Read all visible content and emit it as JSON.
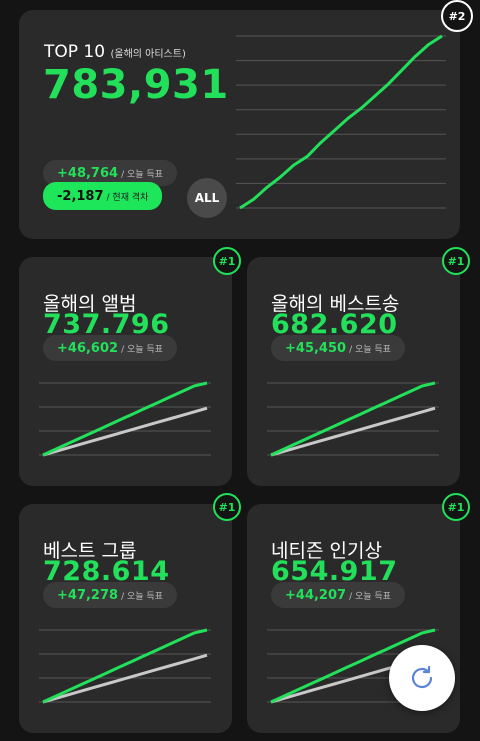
{
  "colors": {
    "accent": "#22e05a",
    "card": "#2a2a2a",
    "background": "#141414",
    "secondary_line": "#c8c8c8"
  },
  "top_card": {
    "title": "TOP 10",
    "subtitle": "(올해의 아티스트)",
    "value": "783,931",
    "rank": "#2",
    "today_delta": "+48,764",
    "today_label": "/ 오늘 득표",
    "gap_delta": "-2,187",
    "gap_label": "/ 현재 격차",
    "all_button": "ALL"
  },
  "cards": [
    {
      "title": "올해의 앨범",
      "value": "737.796",
      "delta": "+46,602",
      "delta_label": "/ 오늘 득표",
      "rank": "#1"
    },
    {
      "title": "올해의 베스트송",
      "value": "682.620",
      "delta": "+45,450",
      "delta_label": "/ 오늘 득표",
      "rank": "#1"
    },
    {
      "title": "베스트 그룹",
      "value": "728.614",
      "delta": "+47,278",
      "delta_label": "/ 오늘 득표",
      "rank": "#1"
    },
    {
      "title": "네티즌 인기상",
      "value": "654.917",
      "delta": "+44,207",
      "delta_label": "/ 오늘 득표",
      "rank": "#1"
    }
  ],
  "refresh_icon": "refresh-icon",
  "chart_data": [
    {
      "type": "line",
      "series": [
        {
          "values": [
            0,
            5,
            12,
            18,
            25,
            30,
            38,
            45,
            52,
            58,
            65,
            72,
            80,
            88,
            95,
            100
          ]
        }
      ]
    },
    {
      "type": "line",
      "series": [
        {
          "values": [
            0,
            8,
            16,
            24,
            32,
            40,
            48,
            56,
            64,
            72,
            80,
            88,
            96,
            100
          ]
        },
        {
          "values": [
            0,
            5,
            10,
            15,
            20,
            25,
            30,
            35,
            40,
            45,
            50,
            55,
            60,
            65
          ]
        }
      ]
    },
    {
      "type": "line",
      "series": [
        {
          "values": [
            0,
            8,
            16,
            24,
            32,
            40,
            48,
            56,
            64,
            72,
            80,
            88,
            96,
            100
          ]
        },
        {
          "values": [
            0,
            5,
            10,
            15,
            20,
            25,
            30,
            35,
            40,
            45,
            50,
            55,
            60,
            65
          ]
        }
      ]
    },
    {
      "type": "line",
      "series": [
        {
          "values": [
            0,
            8,
            16,
            24,
            32,
            40,
            48,
            56,
            64,
            72,
            80,
            88,
            96,
            100
          ]
        },
        {
          "values": [
            0,
            5,
            10,
            15,
            20,
            25,
            30,
            35,
            40,
            45,
            50,
            55,
            60,
            65
          ]
        }
      ]
    },
    {
      "type": "line",
      "series": [
        {
          "values": [
            0,
            8,
            16,
            24,
            32,
            40,
            48,
            56,
            64,
            72,
            80,
            88,
            96,
            100
          ]
        },
        {
          "values": [
            0,
            5,
            10,
            15,
            20,
            25,
            30,
            35,
            40,
            45,
            50,
            55,
            60,
            65
          ]
        }
      ]
    }
  ]
}
